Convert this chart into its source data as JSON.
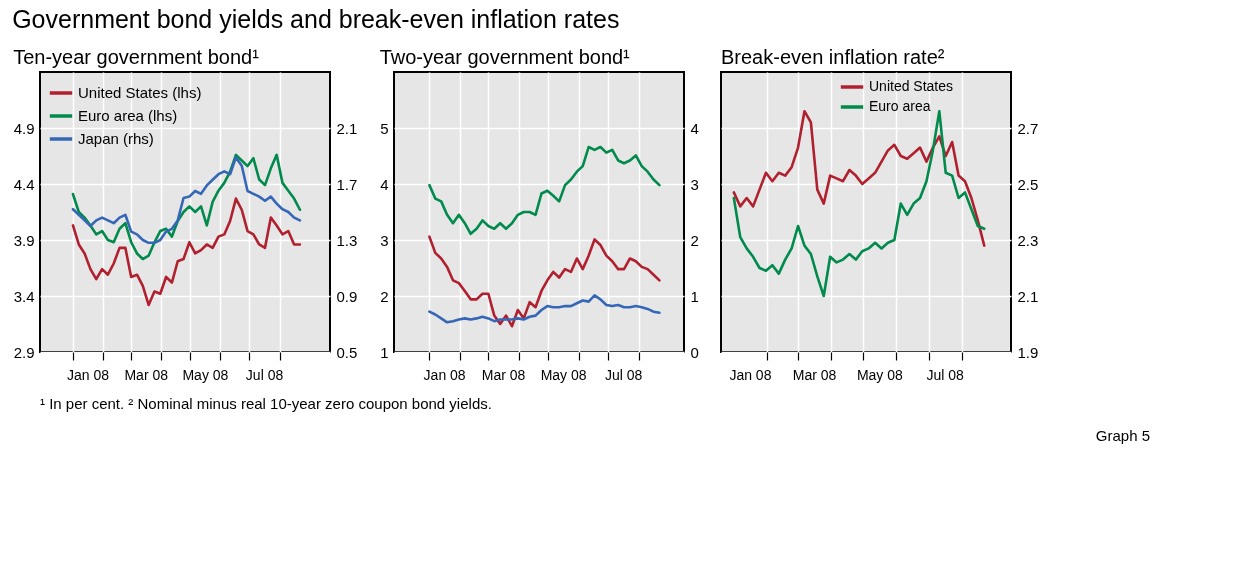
{
  "chart_data": [
    {
      "type": "line",
      "title": "Government bond yields and break-even inflation rates",
      "subtitle": "Ten-year government bond¹",
      "legend": "top left",
      "grid": true,
      "x": [
        "2008-01-01",
        "2008-01-07",
        "2008-01-13",
        "2008-01-19",
        "2008-01-25",
        "2008-01-31",
        "2008-02-06",
        "2008-02-12",
        "2008-02-18",
        "2008-02-24",
        "2008-03-01",
        "2008-03-07",
        "2008-03-13",
        "2008-03-19",
        "2008-03-25",
        "2008-03-31",
        "2008-04-06",
        "2008-04-12",
        "2008-04-18",
        "2008-04-24",
        "2008-04-30",
        "2008-05-06",
        "2008-05-12",
        "2008-05-18",
        "2008-05-24",
        "2008-05-30",
        "2008-06-05",
        "2008-06-11",
        "2008-06-17",
        "2008-06-23",
        "2008-06-29",
        "2008-07-05",
        "2008-07-11",
        "2008-07-17",
        "2008-07-23",
        "2008-07-29",
        "2008-08-04",
        "2008-08-10",
        "2008-08-16",
        "2008-08-22"
      ],
      "xlim": [
        "2007-11-28",
        "2008-09-22"
      ],
      "xticks": [
        {
          "value": "2008-01-01",
          "label": null
        },
        {
          "value": "2008-01-16",
          "label": "Jan 08"
        },
        {
          "value": "2008-02-01",
          "label": null
        },
        {
          "value": "2008-03-01",
          "label": null
        },
        {
          "value": "2008-03-16",
          "label": "Mar 08"
        },
        {
          "value": "2008-04-01",
          "label": null
        },
        {
          "value": "2008-05-01",
          "label": null
        },
        {
          "value": "2008-05-16",
          "label": "May 08"
        },
        {
          "value": "2008-06-01",
          "label": null
        },
        {
          "value": "2008-07-01",
          "label": null
        },
        {
          "value": "2008-07-16",
          "label": "Jul 08"
        },
        {
          "value": "2008-08-01",
          "label": null
        }
      ],
      "ylim": [
        2.9,
        5.4
      ],
      "yticks": [
        2.9,
        3.4,
        3.9,
        4.4,
        4.9
      ],
      "y2lim": [
        0.5,
        2.5
      ],
      "y2ticks": [
        0.5,
        0.9,
        1.3,
        1.7,
        2.1
      ],
      "series": [
        {
          "name": "United States (lhs)",
          "color": "#b0202f",
          "values": [
            4.03,
            3.86,
            3.78,
            3.64,
            3.55,
            3.64,
            3.59,
            3.69,
            3.83,
            3.83,
            3.57,
            3.59,
            3.49,
            3.32,
            3.44,
            3.42,
            3.57,
            3.52,
            3.71,
            3.73,
            3.88,
            3.78,
            3.81,
            3.86,
            3.83,
            3.93,
            3.95,
            4.07,
            4.27,
            4.17,
            3.98,
            3.95,
            3.86,
            3.83,
            4.1,
            4.03,
            3.95,
            3.98,
            3.86,
            3.86
          ]
        },
        {
          "name": "Euro area (lhs)",
          "color": "#008a4b",
          "values": [
            4.31,
            4.15,
            4.1,
            4.03,
            3.95,
            3.98,
            3.9,
            3.88,
            4.0,
            4.05,
            3.88,
            3.78,
            3.73,
            3.76,
            3.88,
            3.98,
            4.0,
            3.93,
            4.07,
            4.15,
            4.2,
            4.15,
            4.2,
            4.03,
            4.24,
            4.34,
            4.41,
            4.51,
            4.66,
            4.61,
            4.56,
            4.63,
            4.44,
            4.39,
            4.54,
            4.66,
            4.41,
            4.34,
            4.27,
            4.17
          ]
        },
        {
          "name": "Japan (rhs)",
          "color": "#3567b7",
          "axis": "y2",
          "values": [
            1.52,
            1.48,
            1.44,
            1.4,
            1.44,
            1.46,
            1.44,
            1.42,
            1.46,
            1.48,
            1.36,
            1.34,
            1.3,
            1.28,
            1.28,
            1.3,
            1.36,
            1.38,
            1.44,
            1.6,
            1.61,
            1.65,
            1.63,
            1.69,
            1.73,
            1.77,
            1.79,
            1.77,
            1.89,
            1.83,
            1.65,
            1.63,
            1.61,
            1.58,
            1.61,
            1.56,
            1.52,
            1.5,
            1.46,
            1.44
          ]
        }
      ],
      "annotations": [
        "¹  In per cent.   ²  Nominal minus real 10-year zero coupon bond yields.",
        "Graph 5"
      ]
    },
    {
      "type": "line",
      "subtitle": "Two-year government bond¹",
      "grid": true,
      "x": [
        "2008-01-01",
        "2008-01-07",
        "2008-01-13",
        "2008-01-19",
        "2008-01-25",
        "2008-01-31",
        "2008-02-06",
        "2008-02-12",
        "2008-02-18",
        "2008-02-24",
        "2008-03-01",
        "2008-03-07",
        "2008-03-13",
        "2008-03-19",
        "2008-03-25",
        "2008-03-31",
        "2008-04-06",
        "2008-04-12",
        "2008-04-18",
        "2008-04-24",
        "2008-04-30",
        "2008-05-06",
        "2008-05-12",
        "2008-05-18",
        "2008-05-24",
        "2008-05-30",
        "2008-06-05",
        "2008-06-11",
        "2008-06-17",
        "2008-06-23",
        "2008-06-29",
        "2008-07-05",
        "2008-07-11",
        "2008-07-17",
        "2008-07-23",
        "2008-07-29",
        "2008-08-04",
        "2008-08-10",
        "2008-08-16",
        "2008-08-22"
      ],
      "xlim": [
        "2007-11-26",
        "2008-09-16"
      ],
      "xticks": [
        {
          "value": "2008-01-01",
          "label": null
        },
        {
          "value": "2008-01-16",
          "label": "Jan 08"
        },
        {
          "value": "2008-02-01",
          "label": null
        },
        {
          "value": "2008-03-01",
          "label": null
        },
        {
          "value": "2008-03-16",
          "label": "Mar 08"
        },
        {
          "value": "2008-04-01",
          "label": null
        },
        {
          "value": "2008-05-01",
          "label": null
        },
        {
          "value": "2008-05-16",
          "label": "May 08"
        },
        {
          "value": "2008-06-01",
          "label": null
        },
        {
          "value": "2008-07-01",
          "label": null
        },
        {
          "value": "2008-07-16",
          "label": "Jul 08"
        },
        {
          "value": "2008-08-01",
          "label": null
        }
      ],
      "ylim": [
        1,
        6
      ],
      "yticks": [
        1,
        2,
        3,
        4,
        5
      ],
      "y2lim": [
        0,
        5
      ],
      "y2ticks": [
        0,
        1,
        2,
        3,
        4
      ],
      "series": [
        {
          "color": "#b0202f",
          "values": [
            3.06,
            2.77,
            2.67,
            2.52,
            2.28,
            2.23,
            2.09,
            1.94,
            1.94,
            2.04,
            2.04,
            1.65,
            1.5,
            1.65,
            1.46,
            1.75,
            1.6,
            1.89,
            1.8,
            2.09,
            2.28,
            2.43,
            2.33,
            2.48,
            2.43,
            2.67,
            2.48,
            2.72,
            3.01,
            2.91,
            2.72,
            2.62,
            2.48,
            2.48,
            2.67,
            2.62,
            2.52,
            2.48,
            2.38,
            2.28
          ]
        },
        {
          "color": "#008a4b",
          "values": [
            3.98,
            3.74,
            3.69,
            3.45,
            3.3,
            3.45,
            3.3,
            3.11,
            3.2,
            3.35,
            3.25,
            3.2,
            3.3,
            3.2,
            3.3,
            3.45,
            3.5,
            3.5,
            3.45,
            3.83,
            3.88,
            3.79,
            3.69,
            3.98,
            4.08,
            4.22,
            4.32,
            4.66,
            4.61,
            4.66,
            4.56,
            4.61,
            4.42,
            4.37,
            4.42,
            4.51,
            4.32,
            4.22,
            4.08,
            3.98
          ]
        },
        {
          "color": "#3567b7",
          "axis": "y2",
          "values": [
            0.72,
            0.67,
            0.6,
            0.53,
            0.55,
            0.58,
            0.6,
            0.58,
            0.6,
            0.63,
            0.6,
            0.55,
            0.58,
            0.58,
            0.58,
            0.6,
            0.58,
            0.63,
            0.65,
            0.75,
            0.82,
            0.8,
            0.8,
            0.82,
            0.82,
            0.87,
            0.92,
            0.9,
            1.01,
            0.94,
            0.84,
            0.82,
            0.84,
            0.8,
            0.8,
            0.82,
            0.8,
            0.77,
            0.72,
            0.7
          ]
        }
      ]
    },
    {
      "type": "line",
      "subtitle": "Break-even inflation rate²",
      "legend": "top",
      "grid": true,
      "x": [
        "2008-01-01",
        "2008-01-07",
        "2008-01-13",
        "2008-01-19",
        "2008-01-25",
        "2008-01-31",
        "2008-02-06",
        "2008-02-12",
        "2008-02-18",
        "2008-02-24",
        "2008-03-01",
        "2008-03-07",
        "2008-03-13",
        "2008-03-19",
        "2008-03-25",
        "2008-03-31",
        "2008-04-06",
        "2008-04-12",
        "2008-04-18",
        "2008-04-24",
        "2008-04-30",
        "2008-05-06",
        "2008-05-12",
        "2008-05-18",
        "2008-05-24",
        "2008-05-30",
        "2008-06-05",
        "2008-06-11",
        "2008-06-17",
        "2008-06-23",
        "2008-06-29",
        "2008-07-05",
        "2008-07-11",
        "2008-07-17",
        "2008-07-23",
        "2008-07-29",
        "2008-08-04",
        "2008-08-10",
        "2008-08-16",
        "2008-08-22"
      ],
      "xlim": [
        "2007-12-20",
        "2008-09-16"
      ],
      "xticks": [
        {
          "value": "2008-01-16",
          "label": "Jan 08"
        },
        {
          "value": "2008-02-01",
          "label": null
        },
        {
          "value": "2008-03-01",
          "label": null
        },
        {
          "value": "2008-03-16",
          "label": "Mar 08"
        },
        {
          "value": "2008-04-01",
          "label": null
        },
        {
          "value": "2008-05-01",
          "label": null
        },
        {
          "value": "2008-05-16",
          "label": "May 08"
        },
        {
          "value": "2008-06-01",
          "label": null
        },
        {
          "value": "2008-07-01",
          "label": null
        },
        {
          "value": "2008-07-16",
          "label": "Jul 08"
        },
        {
          "value": "2008-08-01",
          "label": null
        }
      ],
      "y2lim": [
        1.9,
        2.9
      ],
      "y2ticks": [
        1.9,
        2.1,
        2.3,
        2.5,
        2.7
      ],
      "series": [
        {
          "name": "United States",
          "color": "#b0202f",
          "axis": "y2",
          "values": [
            2.47,
            2.42,
            2.45,
            2.42,
            2.48,
            2.54,
            2.51,
            2.54,
            2.53,
            2.56,
            2.63,
            2.76,
            2.72,
            2.48,
            2.43,
            2.53,
            2.52,
            2.51,
            2.55,
            2.53,
            2.5,
            2.52,
            2.54,
            2.58,
            2.62,
            2.64,
            2.6,
            2.59,
            2.61,
            2.63,
            2.58,
            2.63,
            2.67,
            2.6,
            2.65,
            2.53,
            2.51,
            2.45,
            2.37,
            2.28
          ]
        },
        {
          "name": "Euro area",
          "color": "#008a4b",
          "axis": "y2",
          "values": [
            2.45,
            2.31,
            2.27,
            2.24,
            2.2,
            2.19,
            2.21,
            2.18,
            2.23,
            2.27,
            2.35,
            2.28,
            2.25,
            2.17,
            2.1,
            2.24,
            2.22,
            2.23,
            2.25,
            2.23,
            2.26,
            2.27,
            2.29,
            2.27,
            2.29,
            2.3,
            2.43,
            2.39,
            2.43,
            2.45,
            2.51,
            2.62,
            2.76,
            2.54,
            2.53,
            2.45,
            2.47,
            2.41,
            2.35,
            2.34
          ]
        }
      ]
    }
  ]
}
